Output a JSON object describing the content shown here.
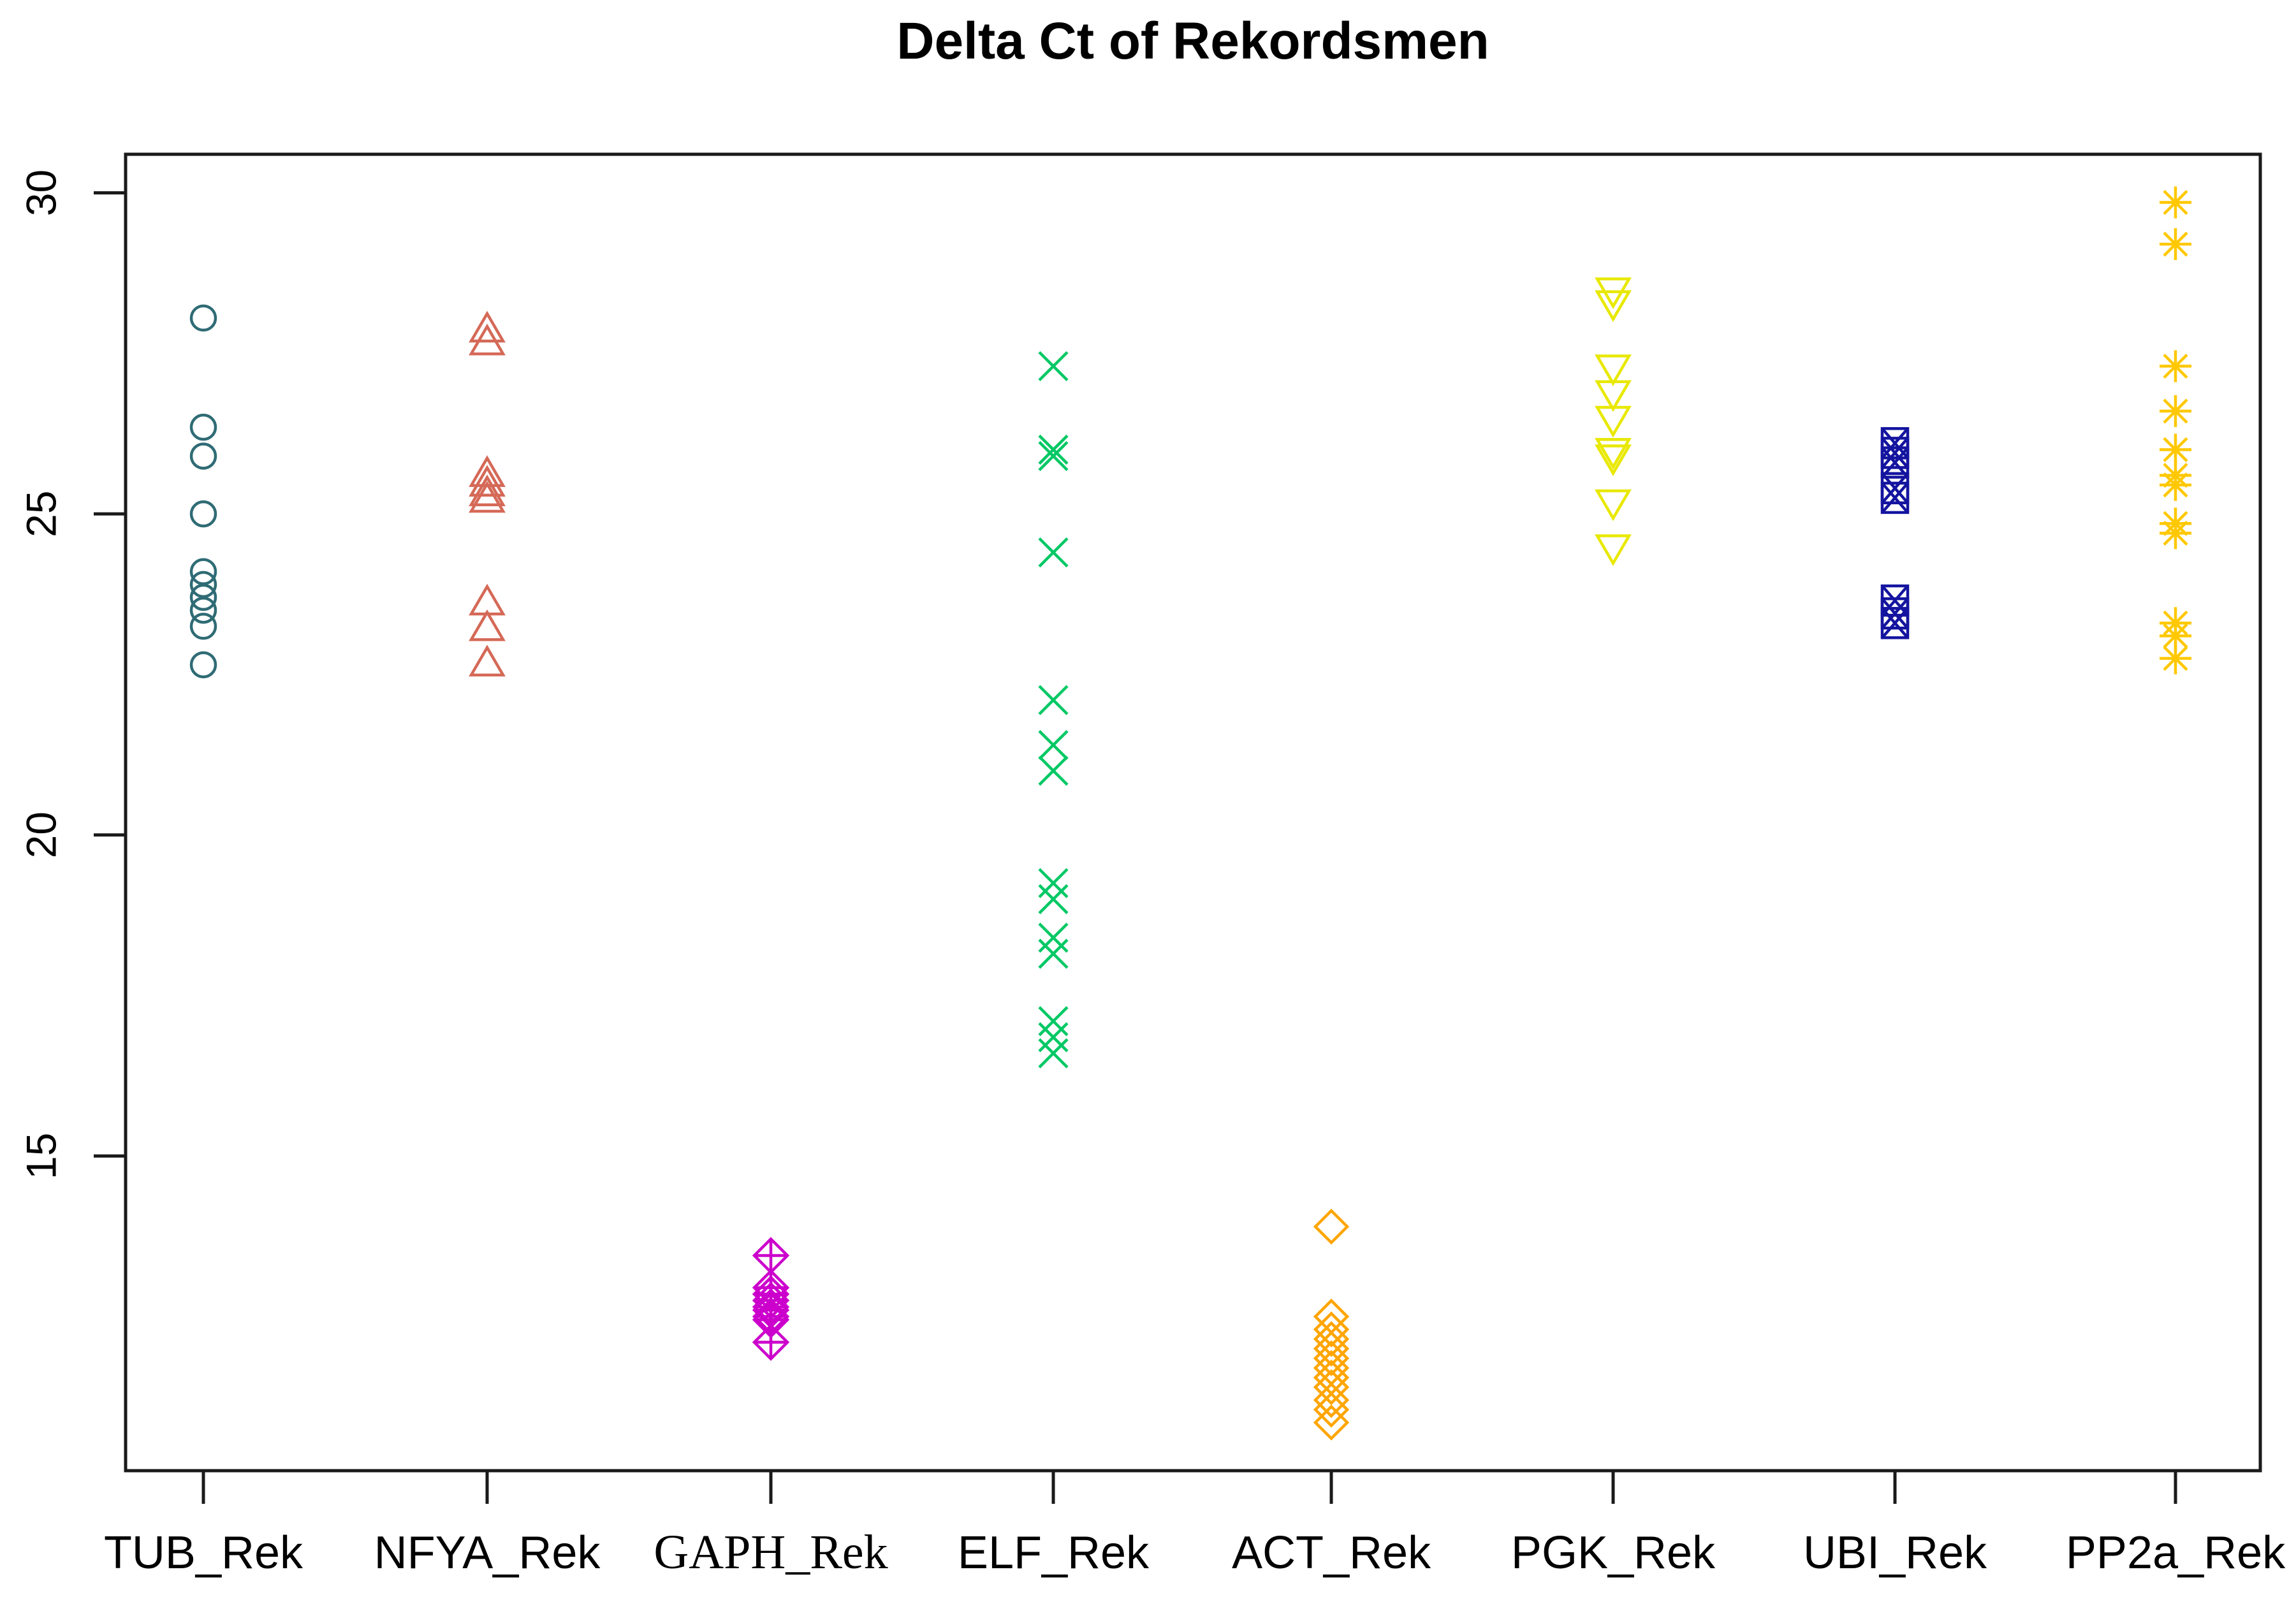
{
  "title": "Delta Ct of Rekordsmen",
  "chart_data": {
    "type": "scatter",
    "title": "Delta Ct of Rekordsmen",
    "xlabel": "",
    "ylabel": "",
    "grid": false,
    "legend": "none",
    "ylim": [
      10.1,
      30.6
    ],
    "y_ticks": [
      15,
      20,
      25,
      30
    ],
    "categories": [
      "TUB_Rek",
      "NFYA_Rek",
      "GAPH_Rek",
      "ELF_Rek",
      "ACT_Rek",
      "PGK_Rek",
      "UBI_Rek",
      "PP2a_Rek"
    ],
    "series": [
      {
        "name": "TUB_Rek",
        "symbol": "circle",
        "color": "#2F6B75",
        "values": [
          28.05,
          26.35,
          25.9,
          25.0,
          24.1,
          23.9,
          23.7,
          23.5,
          23.25,
          22.65
        ]
      },
      {
        "name": "NFYA_Rek",
        "symbol": "triangle-up",
        "color": "#D56957",
        "values": [
          27.85,
          27.65,
          25.6,
          25.45,
          25.3,
          25.2,
          23.6,
          23.2,
          22.65
        ]
      },
      {
        "name": "GAPH_Rek",
        "symbol": "diamond-plus",
        "color": "#CC00CC",
        "values": [
          13.45,
          12.95,
          12.85,
          12.75,
          12.65,
          12.6,
          12.5,
          12.45,
          12.1
        ]
      },
      {
        "name": "ELF_Rek",
        "symbol": "x-cross",
        "color": "#00C864",
        "values": [
          27.3,
          26.0,
          25.9,
          24.4,
          22.1,
          21.4,
          21.0,
          19.25,
          19.0,
          18.4,
          18.15,
          17.1,
          16.85,
          16.6
        ]
      },
      {
        "name": "ACT_Rek",
        "symbol": "diamond",
        "color": "#FFA500",
        "values": [
          13.9,
          12.5,
          12.3,
          12.15,
          12.0,
          11.85,
          11.7,
          11.55,
          11.4,
          11.2,
          11.05,
          10.85
        ]
      },
      {
        "name": "PGK_Rek",
        "symbol": "triangle-down",
        "color": "#E8E800",
        "values": [
          28.5,
          28.3,
          27.3,
          26.9,
          26.5,
          26.0,
          25.9,
          25.2,
          24.5
        ]
      },
      {
        "name": "UBI_Rek",
        "symbol": "square-x",
        "color": "#1414A0",
        "values": [
          26.1,
          25.95,
          25.8,
          25.4,
          25.25,
          23.65,
          23.45,
          23.3
        ]
      },
      {
        "name": "PP2a_Rek",
        "symbol": "asterisk",
        "color": "#FFC800",
        "values": [
          29.85,
          29.2,
          27.3,
          26.6,
          26.0,
          25.6,
          25.45,
          24.85,
          24.7,
          23.3,
          23.1,
          22.75
        ]
      }
    ]
  }
}
